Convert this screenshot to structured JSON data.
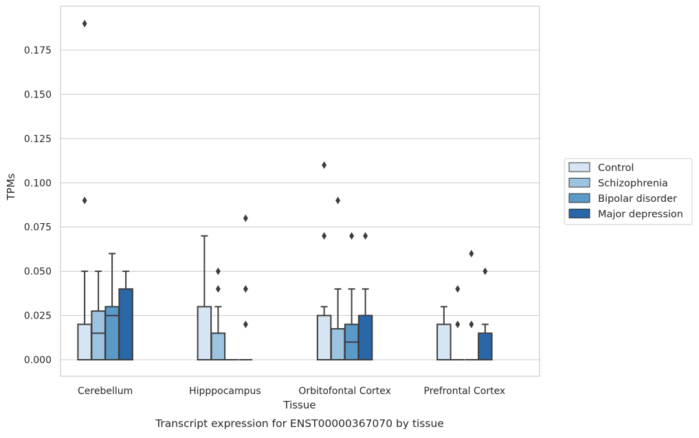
{
  "chart_data": {
    "type": "boxplot",
    "title": "Transcript expression for ENST00000367070 by tissue",
    "xlabel": "Tissue",
    "ylabel": "TPMs",
    "ylim": [
      -0.0095,
      0.1995
    ],
    "yticks": [
      0.0,
      0.025,
      0.05,
      0.075,
      0.1,
      0.125,
      0.15,
      0.175
    ],
    "ytick_labels": [
      "0.000",
      "0.025",
      "0.050",
      "0.075",
      "0.100",
      "0.125",
      "0.150",
      "0.175"
    ],
    "grid": "horizontal",
    "legend_position": "right",
    "categories": [
      "Cerebellum",
      "Hipppocampus",
      "Orbitofontal Cortex",
      "Prefrontal Cortex"
    ],
    "series": [
      {
        "name": "Control",
        "color": "#d6e5f3",
        "boxes": [
          {
            "q1": 0.0,
            "median": 0.0,
            "q3": 0.02,
            "whisker_low": 0.0,
            "whisker_high": 0.05,
            "outliers": [
              0.09,
              0.19
            ]
          },
          {
            "q1": 0.0,
            "median": 0.0,
            "q3": 0.03,
            "whisker_low": 0.0,
            "whisker_high": 0.07,
            "outliers": []
          },
          {
            "q1": 0.0,
            "median": 0.0,
            "q3": 0.025,
            "whisker_low": 0.0,
            "whisker_high": 0.03,
            "outliers": [
              0.07,
              0.11
            ]
          },
          {
            "q1": 0.0,
            "median": 0.0,
            "q3": 0.02,
            "whisker_low": 0.0,
            "whisker_high": 0.03,
            "outliers": []
          }
        ]
      },
      {
        "name": "Schizophrenia",
        "color": "#9cc4e0",
        "boxes": [
          {
            "q1": 0.0,
            "median": 0.015,
            "q3": 0.0275,
            "whisker_low": 0.0,
            "whisker_high": 0.05,
            "outliers": []
          },
          {
            "q1": 0.0,
            "median": 0.0,
            "q3": 0.015,
            "whisker_low": 0.0,
            "whisker_high": 0.03,
            "outliers": [
              0.04,
              0.05
            ]
          },
          {
            "q1": 0.0,
            "median": 0.0,
            "q3": 0.0175,
            "whisker_low": 0.0,
            "whisker_high": 0.04,
            "outliers": [
              0.09
            ]
          },
          {
            "q1": 0.0,
            "median": 0.0,
            "q3": 0.0,
            "whisker_low": 0.0,
            "whisker_high": 0.0,
            "outliers": [
              0.02,
              0.04
            ]
          }
        ]
      },
      {
        "name": "Bipolar disorder",
        "color": "#5a9ac9",
        "boxes": [
          {
            "q1": 0.0,
            "median": 0.025,
            "q3": 0.03,
            "whisker_low": 0.0,
            "whisker_high": 0.06,
            "outliers": []
          },
          {
            "q1": 0.0,
            "median": 0.0,
            "q3": 0.0,
            "whisker_low": 0.0,
            "whisker_high": 0.0,
            "outliers": []
          },
          {
            "q1": 0.0,
            "median": 0.01,
            "q3": 0.02,
            "whisker_low": 0.0,
            "whisker_high": 0.04,
            "outliers": [
              0.07
            ]
          },
          {
            "q1": 0.0,
            "median": 0.0,
            "q3": 0.0,
            "whisker_low": 0.0,
            "whisker_high": 0.0,
            "outliers": [
              0.02,
              0.06
            ]
          }
        ]
      },
      {
        "name": "Major depression",
        "color": "#2a67a8",
        "boxes": [
          {
            "q1": 0.0,
            "median": 0.0,
            "q3": 0.04,
            "whisker_low": 0.0,
            "whisker_high": 0.05,
            "outliers": []
          },
          {
            "q1": 0.0,
            "median": 0.0,
            "q3": 0.0,
            "whisker_low": 0.0,
            "whisker_high": 0.0,
            "outliers": [
              0.02,
              0.04,
              0.08
            ]
          },
          {
            "q1": 0.0,
            "median": 0.0,
            "q3": 0.025,
            "whisker_low": 0.0,
            "whisker_high": 0.04,
            "outliers": [
              0.07
            ]
          },
          {
            "q1": 0.0,
            "median": 0.0,
            "q3": 0.015,
            "whisker_low": 0.0,
            "whisker_high": 0.02,
            "outliers": [
              0.05
            ]
          }
        ]
      }
    ]
  }
}
